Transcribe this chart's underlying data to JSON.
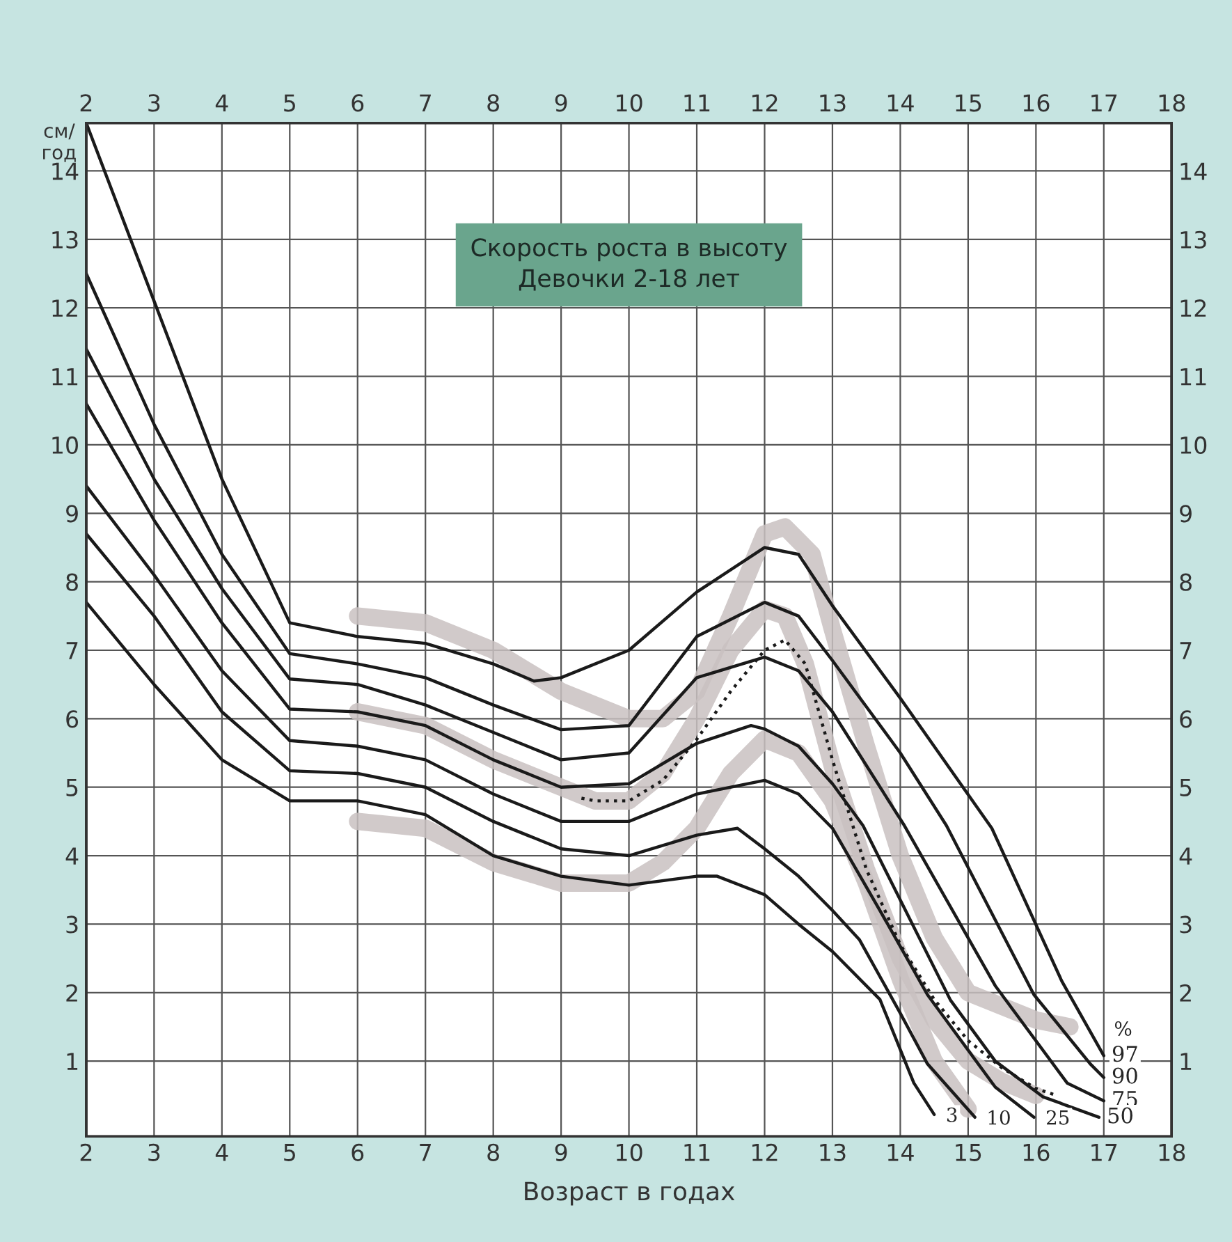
{
  "chart_data": {
    "type": "line",
    "title": "Скорость роста в высоту",
    "subtitle": "Девочки 2-18 лет",
    "xlabel": "Возраст в годах",
    "ylabel": "см/\nгод",
    "xlim": [
      2,
      18
    ],
    "xticks": [
      2,
      3,
      4,
      5,
      6,
      7,
      8,
      9,
      10,
      11,
      12,
      13,
      14,
      15,
      16,
      17,
      18
    ],
    "x2lim": [
      2,
      18
    ],
    "x2ticks": [
      2,
      3,
      4,
      5,
      6,
      7,
      8,
      9,
      10,
      11,
      12,
      13,
      14,
      15,
      16,
      17,
      18
    ],
    "ylim": [
      -0.1,
      14.7
    ],
    "yticks": [
      1,
      2,
      3,
      4,
      5,
      6,
      7,
      8,
      9,
      10,
      11,
      12,
      13,
      14
    ],
    "y2lim": [
      -0.1,
      14.7
    ],
    "y2ticks": [
      1,
      2,
      3,
      4,
      5,
      6,
      7,
      8,
      9,
      10,
      11,
      12,
      13,
      14
    ],
    "grid": true,
    "legend": false,
    "marker": "none",
    "annotations": [
      "%"
    ],
    "series": [
      {
        "color": "#c9c1c1",
        "line_style": "solid",
        "x": [
          6,
          7,
          8,
          9,
          10,
          10.5,
          11,
          11.5,
          12,
          12.3,
          12.7,
          13,
          13.5,
          14,
          14.5,
          15,
          16,
          16.5
        ],
        "values": [
          7.5,
          7.4,
          7.0,
          6.4,
          6.0,
          6.0,
          6.4,
          7.5,
          8.7,
          8.8,
          8.4,
          7.3,
          5.6,
          4.0,
          2.8,
          2.0,
          1.6,
          1.5
        ]
      },
      {
        "color": "#c9c1c1",
        "line_style": "solid",
        "x": [
          6,
          7,
          8,
          9,
          9.5,
          10,
          10.5,
          11,
          11.5,
          12,
          12.3,
          12.6,
          13,
          13.5,
          14,
          14.5,
          15,
          15.5,
          16
        ],
        "values": [
          6.1,
          5.9,
          5.4,
          5.0,
          4.8,
          4.8,
          5.2,
          6.0,
          7.0,
          7.6,
          7.5,
          6.8,
          5.3,
          3.8,
          2.5,
          1.6,
          1.0,
          0.7,
          0.5
        ]
      },
      {
        "color": "#c9c1c1",
        "line_style": "solid",
        "x": [
          6,
          7,
          8,
          9,
          10,
          10.5,
          11,
          11.5,
          12,
          12.5,
          13,
          13.5,
          14,
          14.5,
          15
        ],
        "values": [
          4.5,
          4.4,
          3.9,
          3.6,
          3.6,
          3.9,
          4.4,
          5.2,
          5.7,
          5.5,
          4.8,
          3.6,
          2.2,
          1.0,
          0.3
        ]
      },
      {
        "name": "97",
        "color": "#1a1a1a",
        "line_style": "solid",
        "x": [
          2,
          3,
          4,
          5,
          6,
          7,
          8,
          8.6,
          9,
          10,
          11,
          12,
          12.5,
          13,
          14,
          15.35,
          16.38,
          17
        ],
        "values": [
          14.7,
          12.1,
          9.5,
          7.4,
          7.2,
          7.1,
          6.8,
          6.55,
          6.6,
          7.0,
          7.85,
          8.5,
          8.4,
          7.65,
          6.3,
          4.4,
          2.17,
          1.08
        ]
      },
      {
        "name": "90",
        "color": "#1a1a1a",
        "line_style": "solid",
        "x": [
          2,
          3,
          4,
          5,
          6,
          7,
          8,
          9,
          10,
          11,
          12,
          12.5,
          13,
          14,
          14.68,
          15.97,
          16.8,
          17
        ],
        "values": [
          12.5,
          10.3,
          8.4,
          6.95,
          6.8,
          6.6,
          6.2,
          5.84,
          5.9,
          7.2,
          7.7,
          7.5,
          6.85,
          5.5,
          4.44,
          1.97,
          0.96,
          0.76
        ]
      },
      {
        "name": "75",
        "color": "#1a1a1a",
        "line_style": "solid",
        "x": [
          2,
          3,
          4,
          5,
          6,
          7,
          8,
          9,
          10,
          11,
          12,
          12.5,
          13,
          14.06,
          15.4,
          16.46,
          17
        ],
        "values": [
          11.4,
          9.5,
          7.9,
          6.58,
          6.5,
          6.2,
          5.8,
          5.4,
          5.5,
          6.6,
          6.9,
          6.7,
          6.1,
          4.44,
          2.1,
          0.68,
          0.42
        ]
      },
      {
        "name": "50",
        "color": "#1a1a1a",
        "line_style": "solid",
        "x": [
          2,
          3,
          4,
          5,
          6,
          7,
          8,
          9,
          10,
          11,
          11.8,
          12,
          12.5,
          13,
          13.45,
          14.74,
          15.4,
          16.1,
          16.93
        ],
        "values": [
          10.6,
          8.9,
          7.4,
          6.14,
          6.1,
          5.9,
          5.4,
          5.0,
          5.05,
          5.64,
          5.9,
          5.85,
          5.6,
          5.05,
          4.44,
          1.89,
          1.0,
          0.48,
          0.18
        ]
      },
      {
        "name": "25",
        "color": "#1a1a1a",
        "line_style": "solid",
        "x": [
          2,
          3,
          4,
          5,
          6,
          7,
          8,
          9,
          10,
          11,
          12,
          12.5,
          13,
          13.7,
          14.4,
          15.4,
          15.97
        ],
        "values": [
          9.4,
          8.1,
          6.7,
          5.68,
          5.6,
          5.4,
          4.9,
          4.5,
          4.5,
          4.9,
          5.1,
          4.9,
          4.4,
          3.2,
          1.97,
          0.62,
          0.18
        ]
      },
      {
        "name": "10",
        "color": "#1a1a1a",
        "line_style": "solid",
        "x": [
          2,
          3,
          4,
          5,
          6,
          7,
          8,
          9,
          10,
          11,
          11.6,
          12,
          12.5,
          13,
          13.4,
          14,
          14.4,
          15.1
        ],
        "values": [
          8.7,
          7.5,
          6.1,
          5.24,
          5.2,
          5.0,
          4.5,
          4.1,
          4.0,
          4.3,
          4.4,
          4.1,
          3.7,
          3.2,
          2.77,
          1.7,
          0.96,
          0.18
        ]
      },
      {
        "name": "3",
        "color": "#1a1a1a",
        "line_style": "solid",
        "x": [
          2,
          3,
          4,
          5,
          6,
          7,
          8,
          9,
          10,
          11,
          11.3,
          12,
          12.5,
          13,
          13.7,
          14.2,
          14.5
        ],
        "values": [
          7.7,
          6.5,
          5.4,
          4.8,
          4.8,
          4.6,
          4.0,
          3.7,
          3.57,
          3.7,
          3.7,
          3.43,
          3.0,
          2.6,
          1.9,
          0.68,
          0.22
        ]
      },
      {
        "color": "#1a1a1a",
        "line_style": "dotted",
        "x": [
          9.3,
          9.5,
          10,
          10.5,
          11,
          11.5,
          12,
          12.3,
          12.6,
          13,
          13.5,
          14,
          14.5,
          15,
          15.5,
          16,
          16.3
        ],
        "values": [
          4.84,
          4.8,
          4.8,
          5.1,
          5.7,
          6.4,
          7.0,
          7.15,
          6.8,
          5.4,
          3.8,
          2.7,
          1.9,
          1.3,
          0.9,
          0.6,
          0.5
        ]
      }
    ]
  }
}
